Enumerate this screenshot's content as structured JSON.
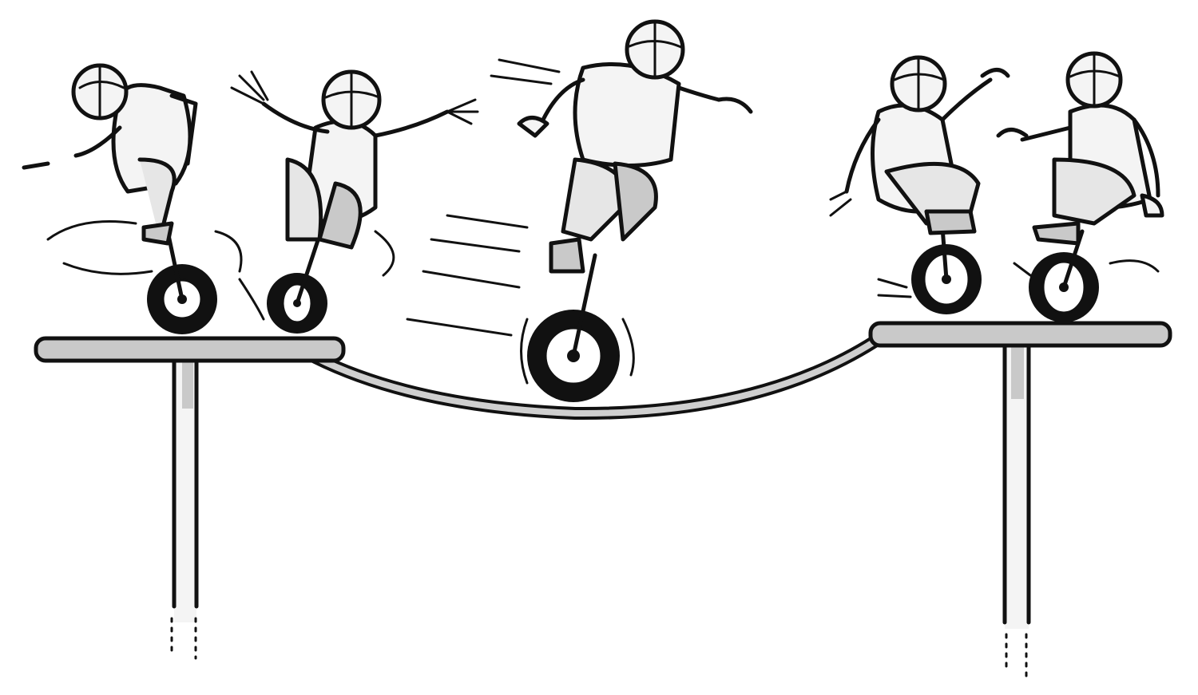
{
  "illustration": {
    "subject": "",
    "colors": {
      "ink": "#111111",
      "body": "#f4f4f4",
      "shade": "#c9c9c9",
      "background": "#ffffff"
    },
    "riders": [
      {
        "id": 1,
        "pose": "arm-raised"
      },
      {
        "id": 2,
        "pose": "arms-out"
      },
      {
        "id": 3,
        "pose": "leaping"
      },
      {
        "id": 4,
        "pose": "waving"
      },
      {
        "id": 5,
        "pose": "reaching"
      }
    ]
  }
}
